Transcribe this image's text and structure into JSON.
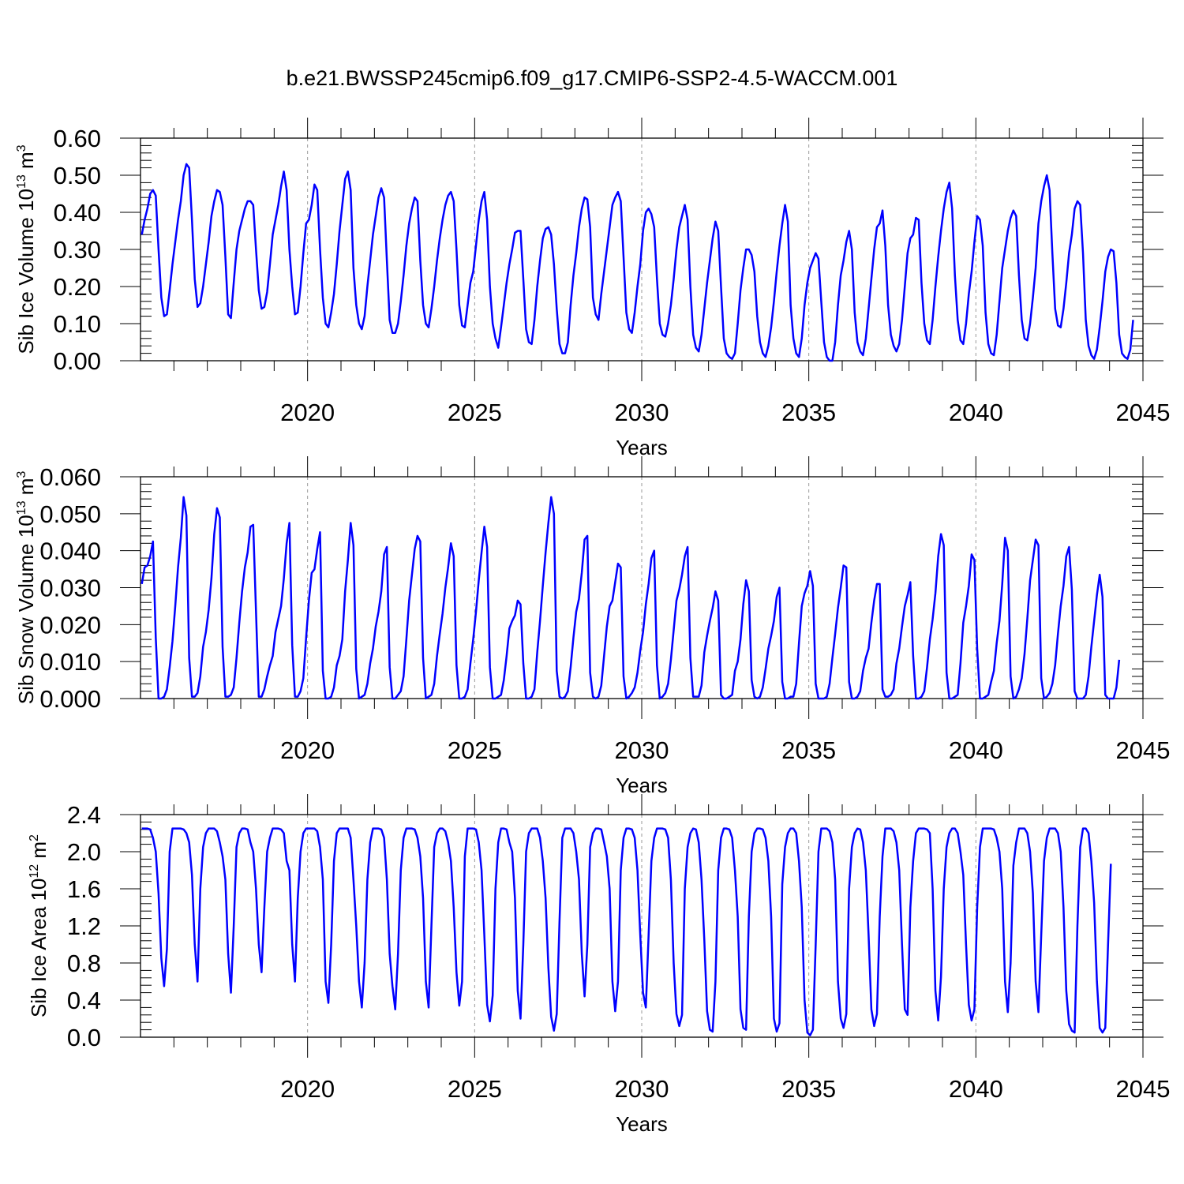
{
  "figure": {
    "title": "b.e21.BWSSP245cmip6.f09_g17.CMIP6-SSP2-4.5-WACCM.001"
  },
  "chart_data": [
    {
      "type": "line",
      "title": "",
      "xlabel": "Years",
      "ylabel": "Sib Ice Volume 10",
      "ylabel_exp": "13",
      "ylabel_unit": " m",
      "ylabel_unit_exp": "3",
      "xlim": [
        2015.0,
        2045.0
      ],
      "ylim": [
        0,
        0.6
      ],
      "yticks": [
        "0.00",
        "0.10",
        "0.20",
        "0.30",
        "0.40",
        "0.50",
        "0.60"
      ],
      "xticks": [
        "2020",
        "2025",
        "2030",
        "2035",
        "2040",
        "2045"
      ],
      "grid": "dashed vertical at major x ticks",
      "color": "#0000ff",
      "x_start": 2015.04,
      "x_step": 0.08333,
      "values": [
        0.34,
        0.38,
        0.41,
        0.45,
        0.46,
        0.445,
        0.3,
        0.17,
        0.12,
        0.125,
        0.19,
        0.26,
        0.32,
        0.38,
        0.43,
        0.5,
        0.53,
        0.52,
        0.38,
        0.22,
        0.145,
        0.155,
        0.2,
        0.26,
        0.32,
        0.39,
        0.43,
        0.46,
        0.455,
        0.42,
        0.28,
        0.125,
        0.115,
        0.21,
        0.3,
        0.35,
        0.38,
        0.41,
        0.43,
        0.43,
        0.42,
        0.3,
        0.19,
        0.14,
        0.145,
        0.185,
        0.26,
        0.34,
        0.38,
        0.42,
        0.47,
        0.51,
        0.46,
        0.3,
        0.2,
        0.125,
        0.13,
        0.2,
        0.29,
        0.37,
        0.38,
        0.42,
        0.475,
        0.46,
        0.3,
        0.17,
        0.1,
        0.09,
        0.13,
        0.18,
        0.26,
        0.35,
        0.42,
        0.49,
        0.51,
        0.46,
        0.25,
        0.15,
        0.1,
        0.085,
        0.12,
        0.2,
        0.27,
        0.34,
        0.39,
        0.44,
        0.465,
        0.44,
        0.27,
        0.11,
        0.075,
        0.075,
        0.1,
        0.16,
        0.23,
        0.31,
        0.37,
        0.41,
        0.44,
        0.43,
        0.27,
        0.15,
        0.1,
        0.09,
        0.14,
        0.2,
        0.27,
        0.33,
        0.38,
        0.42,
        0.445,
        0.455,
        0.43,
        0.3,
        0.15,
        0.095,
        0.09,
        0.15,
        0.21,
        0.24,
        0.31,
        0.38,
        0.43,
        0.455,
        0.38,
        0.2,
        0.1,
        0.06,
        0.035,
        0.09,
        0.15,
        0.21,
        0.26,
        0.3,
        0.345,
        0.35,
        0.35,
        0.22,
        0.085,
        0.05,
        0.045,
        0.11,
        0.2,
        0.27,
        0.33,
        0.355,
        0.36,
        0.34,
        0.26,
        0.14,
        0.045,
        0.02,
        0.02,
        0.05,
        0.15,
        0.23,
        0.29,
        0.36,
        0.41,
        0.44,
        0.435,
        0.36,
        0.17,
        0.125,
        0.11,
        0.18,
        0.24,
        0.3,
        0.36,
        0.42,
        0.44,
        0.455,
        0.43,
        0.28,
        0.13,
        0.085,
        0.075,
        0.13,
        0.2,
        0.26,
        0.35,
        0.4,
        0.41,
        0.395,
        0.36,
        0.22,
        0.1,
        0.07,
        0.065,
        0.1,
        0.15,
        0.22,
        0.3,
        0.36,
        0.39,
        0.42,
        0.38,
        0.2,
        0.07,
        0.035,
        0.025,
        0.07,
        0.14,
        0.21,
        0.27,
        0.33,
        0.375,
        0.35,
        0.2,
        0.06,
        0.02,
        0.01,
        0.005,
        0.02,
        0.1,
        0.19,
        0.25,
        0.3,
        0.3,
        0.285,
        0.24,
        0.12,
        0.05,
        0.02,
        0.01,
        0.04,
        0.09,
        0.16,
        0.24,
        0.31,
        0.37,
        0.42,
        0.375,
        0.15,
        0.06,
        0.02,
        0.01,
        0.06,
        0.15,
        0.21,
        0.25,
        0.27,
        0.29,
        0.275,
        0.16,
        0.05,
        0.01,
        0.0,
        0.0,
        0.05,
        0.15,
        0.23,
        0.27,
        0.32,
        0.35,
        0.3,
        0.13,
        0.05,
        0.025,
        0.015,
        0.06,
        0.14,
        0.22,
        0.3,
        0.36,
        0.37,
        0.405,
        0.31,
        0.15,
        0.07,
        0.04,
        0.025,
        0.045,
        0.11,
        0.2,
        0.29,
        0.33,
        0.34,
        0.385,
        0.38,
        0.21,
        0.1,
        0.055,
        0.045,
        0.11,
        0.2,
        0.28,
        0.35,
        0.41,
        0.455,
        0.48,
        0.41,
        0.23,
        0.11,
        0.055,
        0.045,
        0.1,
        0.18,
        0.24,
        0.32,
        0.39,
        0.38,
        0.31,
        0.13,
        0.045,
        0.02,
        0.015,
        0.07,
        0.16,
        0.25,
        0.3,
        0.35,
        0.385,
        0.405,
        0.39,
        0.23,
        0.11,
        0.06,
        0.055,
        0.1,
        0.17,
        0.25,
        0.37,
        0.43,
        0.47,
        0.5,
        0.46,
        0.29,
        0.14,
        0.095,
        0.09,
        0.14,
        0.21,
        0.29,
        0.34,
        0.41,
        0.43,
        0.42,
        0.29,
        0.11,
        0.04,
        0.015,
        0.005,
        0.03,
        0.09,
        0.16,
        0.24,
        0.28,
        0.3,
        0.295,
        0.21,
        0.07,
        0.02,
        0.01,
        0.005,
        0.03,
        0.11
      ]
    },
    {
      "type": "line",
      "title": "",
      "xlabel": "Years",
      "ylabel": "Sib Snow Volume 10",
      "ylabel_exp": "13",
      "ylabel_unit": " m",
      "ylabel_unit_exp": "3",
      "xlim": [
        2015.0,
        2045.0
      ],
      "ylim": [
        0,
        0.06
      ],
      "yticks": [
        "0.000",
        "0.010",
        "0.020",
        "0.030",
        "0.040",
        "0.050",
        "0.060"
      ],
      "xticks": [
        "2020",
        "2025",
        "2030",
        "2035",
        "2040",
        "2045"
      ],
      "grid": "dashed vertical at major x ticks",
      "color": "#0000ff",
      "x_start": 2015.04,
      "x_step": 0.08333,
      "values": [
        0.031,
        0.0355,
        0.036,
        0.0385,
        0.0425,
        0.0165,
        0.0,
        0.0,
        0.0005,
        0.0025,
        0.0085,
        0.0155,
        0.025,
        0.0355,
        0.0435,
        0.0545,
        0.0495,
        0.011,
        0.0005,
        0.0005,
        0.0015,
        0.006,
        0.014,
        0.018,
        0.024,
        0.0325,
        0.0445,
        0.0515,
        0.049,
        0.014,
        0.0005,
        0.0005,
        0.001,
        0.003,
        0.011,
        0.0205,
        0.029,
        0.0355,
        0.0395,
        0.0465,
        0.047,
        0.0235,
        0.0005,
        0.0005,
        0.0025,
        0.006,
        0.009,
        0.0115,
        0.018,
        0.0215,
        0.025,
        0.0325,
        0.042,
        0.0475,
        0.0145,
        0.0005,
        0.0005,
        0.002,
        0.0055,
        0.0165,
        0.0265,
        0.034,
        0.035,
        0.0405,
        0.045,
        0.0075,
        0.0,
        0.0,
        0.0005,
        0.003,
        0.009,
        0.0115,
        0.016,
        0.029,
        0.0375,
        0.0475,
        0.0415,
        0.008,
        0.0,
        0.0005,
        0.001,
        0.004,
        0.0095,
        0.0135,
        0.0195,
        0.0235,
        0.029,
        0.039,
        0.041,
        0.0085,
        0.0,
        0.0,
        0.001,
        0.002,
        0.006,
        0.016,
        0.0265,
        0.0335,
        0.0405,
        0.044,
        0.0425,
        0.011,
        0.0,
        0.0005,
        0.001,
        0.004,
        0.0115,
        0.0175,
        0.023,
        0.03,
        0.0355,
        0.042,
        0.0385,
        0.009,
        0.0,
        0.0,
        0.0005,
        0.0025,
        0.0095,
        0.016,
        0.0235,
        0.032,
        0.0395,
        0.0465,
        0.041,
        0.0085,
        0.0,
        0.0,
        0.0005,
        0.001,
        0.005,
        0.0115,
        0.019,
        0.021,
        0.0225,
        0.0265,
        0.0255,
        0.0095,
        0.0,
        0.0,
        0.0005,
        0.0025,
        0.0125,
        0.021,
        0.0305,
        0.0395,
        0.0475,
        0.0545,
        0.05,
        0.0075,
        0.0005,
        0.0,
        0.0005,
        0.002,
        0.0085,
        0.0165,
        0.0235,
        0.027,
        0.034,
        0.043,
        0.044,
        0.007,
        0.0005,
        0.0,
        0.0005,
        0.0035,
        0.0115,
        0.0195,
        0.025,
        0.0265,
        0.0315,
        0.0365,
        0.0355,
        0.006,
        0.0,
        0.0005,
        0.0015,
        0.003,
        0.007,
        0.013,
        0.018,
        0.0255,
        0.031,
        0.038,
        0.04,
        0.009,
        0.0,
        0.0005,
        0.0015,
        0.004,
        0.0105,
        0.0185,
        0.0265,
        0.0295,
        0.0335,
        0.0385,
        0.041,
        0.011,
        0.0005,
        0.0005,
        0.0005,
        0.0035,
        0.0125,
        0.017,
        0.021,
        0.0245,
        0.029,
        0.0265,
        0.001,
        0.0,
        0.0,
        0.0005,
        0.001,
        0.0075,
        0.01,
        0.016,
        0.0255,
        0.032,
        0.029,
        0.005,
        0.0005,
        0.0,
        0.0005,
        0.003,
        0.008,
        0.0135,
        0.017,
        0.021,
        0.0275,
        0.03,
        0.0045,
        0.0,
        0.0,
        0.0005,
        0.0005,
        0.004,
        0.015,
        0.025,
        0.0285,
        0.0305,
        0.0345,
        0.0305,
        0.004,
        0.0,
        0.0,
        0.0,
        0.0005,
        0.004,
        0.011,
        0.0175,
        0.0245,
        0.03,
        0.036,
        0.0355,
        0.0045,
        0.0,
        0.0,
        0.0005,
        0.002,
        0.0075,
        0.011,
        0.0135,
        0.0205,
        0.0265,
        0.031,
        0.031,
        0.0025,
        0.0005,
        0.0005,
        0.001,
        0.0025,
        0.0095,
        0.0135,
        0.0195,
        0.025,
        0.028,
        0.0315,
        0.0115,
        0.0,
        0.0,
        0.0005,
        0.002,
        0.0085,
        0.016,
        0.0215,
        0.0285,
        0.0385,
        0.0445,
        0.0415,
        0.007,
        0.0,
        0.0,
        0.0005,
        0.001,
        0.0095,
        0.0205,
        0.025,
        0.0305,
        0.039,
        0.0375,
        0.0135,
        0.0,
        0.0,
        0.0005,
        0.001,
        0.0045,
        0.0075,
        0.015,
        0.021,
        0.031,
        0.0435,
        0.04,
        0.006,
        0.0,
        0.0005,
        0.0025,
        0.0055,
        0.012,
        0.0215,
        0.032,
        0.0375,
        0.043,
        0.0415,
        0.0055,
        0.0,
        0.0005,
        0.0015,
        0.004,
        0.009,
        0.0175,
        0.025,
        0.0305,
        0.0385,
        0.041,
        0.0295,
        0.002,
        0.0,
        0.0,
        0.0,
        0.001,
        0.006,
        0.014,
        0.021,
        0.028,
        0.0335,
        0.0275,
        0.001,
        0.0,
        0.0,
        0.0,
        0.003,
        0.0105
      ]
    },
    {
      "type": "line",
      "title": "",
      "xlabel": "Years",
      "ylabel": "Sib Ice Area 10",
      "ylabel_exp": "12",
      "ylabel_unit": " m",
      "ylabel_unit_exp": "2",
      "xlim": [
        2015.0,
        2045.0
      ],
      "ylim": [
        0,
        2.4
      ],
      "yticks": [
        "0.0",
        "0.4",
        "0.8",
        "1.2",
        "1.6",
        "2.0",
        "2.4"
      ],
      "xticks": [
        "2020",
        "2025",
        "2030",
        "2035",
        "2040",
        "2045"
      ],
      "grid": "dashed vertical at major x ticks",
      "color": "#0000ff",
      "x_start": 2015.04,
      "x_step": 0.08333,
      "values": [
        2.25,
        2.25,
        2.25,
        2.24,
        2.15,
        2.0,
        1.55,
        0.85,
        0.55,
        0.95,
        2.0,
        2.25,
        2.25,
        2.25,
        2.25,
        2.24,
        2.2,
        2.1,
        1.75,
        1.0,
        0.6,
        1.6,
        2.05,
        2.2,
        2.25,
        2.25,
        2.25,
        2.22,
        2.1,
        1.95,
        1.7,
        0.9,
        0.48,
        1.2,
        2.05,
        2.2,
        2.25,
        2.25,
        2.24,
        2.1,
        2.0,
        1.6,
        1.0,
        0.7,
        1.4,
        2.0,
        2.15,
        2.25,
        2.25,
        2.25,
        2.24,
        2.2,
        1.9,
        1.8,
        1.0,
        0.6,
        1.5,
        2.0,
        2.2,
        2.25,
        2.25,
        2.25,
        2.25,
        2.22,
        2.05,
        1.7,
        0.6,
        0.37,
        1.0,
        1.9,
        2.2,
        2.25,
        2.25,
        2.25,
        2.25,
        2.15,
        1.7,
        1.2,
        0.6,
        0.32,
        0.8,
        1.7,
        2.1,
        2.25,
        2.25,
        2.25,
        2.24,
        2.15,
        1.7,
        0.9,
        0.55,
        0.3,
        0.9,
        1.8,
        2.15,
        2.25,
        2.25,
        2.25,
        2.24,
        2.15,
        1.95,
        1.5,
        0.6,
        0.32,
        1.2,
        2.05,
        2.2,
        2.25,
        2.25,
        2.22,
        2.1,
        1.9,
        1.4,
        0.7,
        0.34,
        0.6,
        1.95,
        2.25,
        2.25,
        2.25,
        2.24,
        2.1,
        1.8,
        1.1,
        0.35,
        0.17,
        0.45,
        1.6,
        2.1,
        2.25,
        2.25,
        2.24,
        2.1,
        2.0,
        1.5,
        0.5,
        0.2,
        1.0,
        2.0,
        2.2,
        2.25,
        2.25,
        2.25,
        2.15,
        1.9,
        1.5,
        0.75,
        0.22,
        0.07,
        0.25,
        1.25,
        2.15,
        2.25,
        2.25,
        2.25,
        2.2,
        2.0,
        1.7,
        0.9,
        0.44,
        1.0,
        2.05,
        2.2,
        2.25,
        2.25,
        2.24,
        2.1,
        1.95,
        1.6,
        0.6,
        0.28,
        0.6,
        1.8,
        2.15,
        2.25,
        2.25,
        2.24,
        2.15,
        1.8,
        1.1,
        0.48,
        0.32,
        1.1,
        1.9,
        2.15,
        2.25,
        2.25,
        2.25,
        2.24,
        2.15,
        1.7,
        0.8,
        0.25,
        0.12,
        0.24,
        1.6,
        2.05,
        2.2,
        2.25,
        2.24,
        2.1,
        1.7,
        1.05,
        0.28,
        0.08,
        0.06,
        0.6,
        1.8,
        2.15,
        2.25,
        2.25,
        2.24,
        2.15,
        1.8,
        1.3,
        0.3,
        0.1,
        0.08,
        1.3,
        2.0,
        2.2,
        2.25,
        2.25,
        2.24,
        2.15,
        1.9,
        1.3,
        0.2,
        0.06,
        0.15,
        1.65,
        2.05,
        2.2,
        2.25,
        2.25,
        2.2,
        1.9,
        1.4,
        0.4,
        0.05,
        0.02,
        0.08,
        1.0,
        2.0,
        2.25,
        2.25,
        2.25,
        2.22,
        2.1,
        1.7,
        0.6,
        0.2,
        0.1,
        0.25,
        1.6,
        2.05,
        2.2,
        2.25,
        2.24,
        2.1,
        1.8,
        1.1,
        0.3,
        0.12,
        0.25,
        1.3,
        1.95,
        2.25,
        2.25,
        2.25,
        2.22,
        2.1,
        1.8,
        1.0,
        0.3,
        0.24,
        1.4,
        1.9,
        2.2,
        2.25,
        2.25,
        2.25,
        2.24,
        2.2,
        1.6,
        0.5,
        0.18,
        0.65,
        1.6,
        2.05,
        2.2,
        2.25,
        2.25,
        2.2,
        2.0,
        1.75,
        1.0,
        0.35,
        0.18,
        0.3,
        1.4,
        2.05,
        2.25,
        2.25,
        2.25,
        2.25,
        2.24,
        2.15,
        2.0,
        1.6,
        0.6,
        0.27,
        0.8,
        1.85,
        2.1,
        2.25,
        2.25,
        2.25,
        2.2,
        2.0,
        1.55,
        0.6,
        0.27,
        1.1,
        1.9,
        2.15,
        2.25,
        2.25,
        2.25,
        2.2,
        2.0,
        1.4,
        0.5,
        0.14,
        0.07,
        0.05,
        1.2,
        2.05,
        2.25,
        2.25,
        2.2,
        1.9,
        1.45,
        0.6,
        0.1,
        0.05,
        0.1,
        1.0,
        1.87
      ]
    }
  ]
}
